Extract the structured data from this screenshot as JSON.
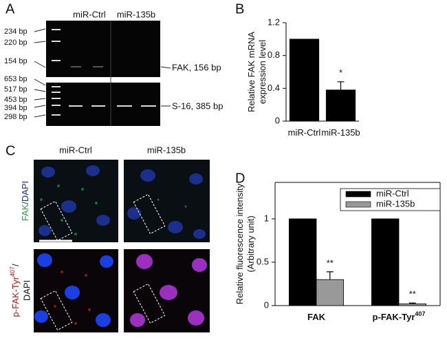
{
  "panel_labels": [
    "A",
    "B",
    "C",
    "D"
  ],
  "gel": {
    "columns": [
      "miR-Ctrl",
      "miR-135b"
    ],
    "top_markers": [
      "234 bp",
      "220 bp",
      "154 bp"
    ],
    "bottom_markers": [
      "653 bp",
      "517 bp",
      "453 bp",
      "394 bp",
      "298 bp"
    ],
    "bands": [
      "FAK, 156 bp",
      "S-16, 385 bp"
    ]
  },
  "microscopy": {
    "columns": [
      "miR-Ctrl",
      "miR-135b"
    ],
    "rows": [
      [
        "FAK",
        "/DAPI"
      ],
      [
        "p-FAK-Tyr",
        "407",
        "/",
        "DAPI"
      ]
    ]
  },
  "chart_data": [
    {
      "type": "bar",
      "ylabel": [
        "Relative FAK mRNA",
        "expression level"
      ],
      "categories": [
        "miR-Ctrl",
        "miR-135b"
      ],
      "series": [
        {
          "color": "#000000",
          "values": [
            1,
            0.38
          ],
          "errors": [
            null,
            0.1
          ]
        }
      ],
      "significance": [
        null,
        "*"
      ],
      "ylim": [
        0,
        1.2
      ],
      "yticks": [
        0,
        0.4,
        0.8,
        1.2
      ]
    },
    {
      "type": "bar",
      "ylabel": [
        "Relative fluorescence intensity",
        "(Arbitrary unit)"
      ],
      "categories": [
        "FAK",
        "p-FAK-Tyr"
      ],
      "category_superscripts": [
        null,
        "407"
      ],
      "series": [
        {
          "name": "miR-Ctrl",
          "color": "#000000",
          "values": [
            1,
            1
          ]
        },
        {
          "name": "miR-135b",
          "color": "#999999",
          "values": [
            0.3,
            0.02
          ],
          "errors": [
            0.09,
            0.01
          ]
        }
      ],
      "significance": [
        "**",
        "**"
      ],
      "ylim": [
        0,
        1.42
      ],
      "yticks": [
        0,
        0.5,
        1
      ],
      "legend": "top-right"
    }
  ]
}
